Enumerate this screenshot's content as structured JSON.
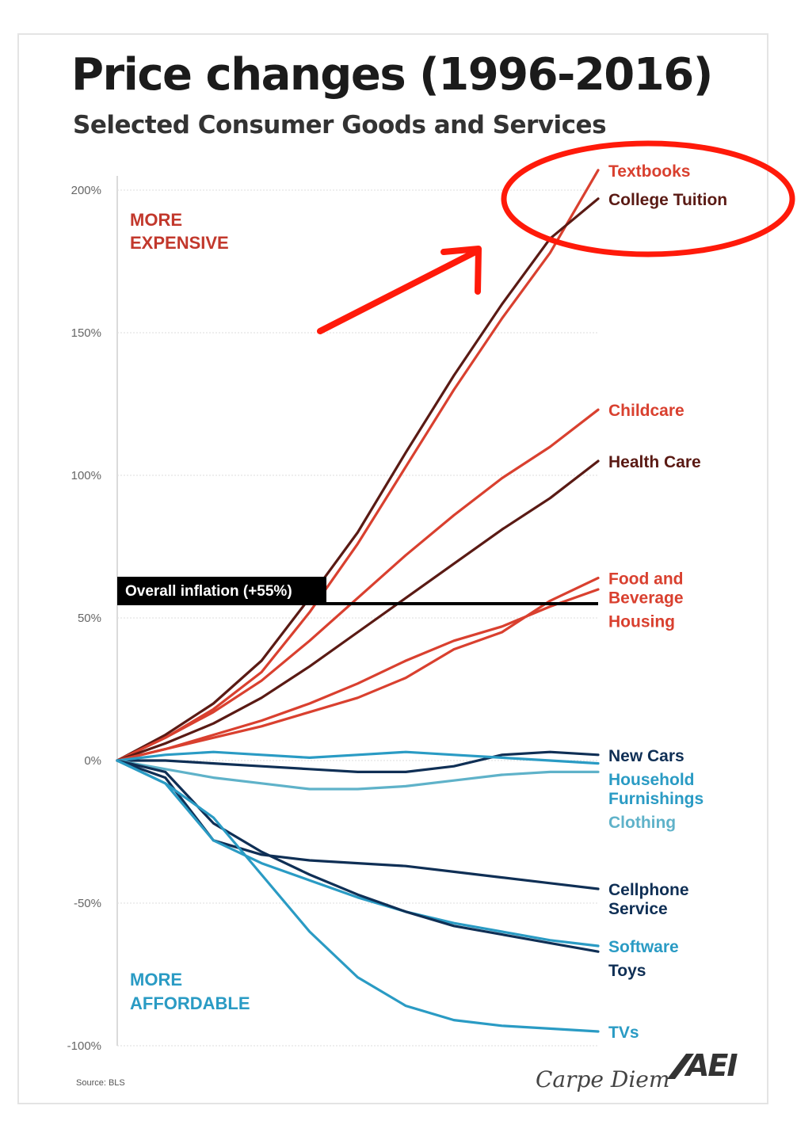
{
  "header": {
    "title": "Price changes (1996-2016)",
    "subtitle": "Selected Consumer Goods and Services"
  },
  "annotations": {
    "more_expensive": [
      "MORE",
      "EXPENSIVE"
    ],
    "more_affordable": [
      "MORE",
      "AFFORDABLE"
    ],
    "inflation_label": "Overall inflation (+55%)"
  },
  "footer": {
    "source": "Source: BLS",
    "brand": "Carpe Diem",
    "logo_text": "AEI"
  },
  "colors": {
    "dark_red": "#5a1a14",
    "red": "#d9402f",
    "navy": "#0f2f55",
    "teal": "#2a9bc4",
    "light_teal": "#5fb2c9",
    "inflation": "#000000",
    "highlight": "#ff1a0a"
  },
  "chart_data": {
    "type": "line",
    "x": [
      1996,
      1998,
      2000,
      2002,
      2004,
      2006,
      2008,
      2010,
      2012,
      2014,
      2016
    ],
    "ylim": [
      -100,
      205
    ],
    "yticks": [
      200,
      150,
      100,
      50,
      0,
      -50,
      -100
    ],
    "ytick_labels": [
      "200%",
      "150%",
      "100%",
      "50%",
      "0%",
      "-50%",
      "-100%"
    ],
    "xlabel": "",
    "ylabel": "",
    "grid": true,
    "reference_line": {
      "label": "Overall inflation (+55%)",
      "value": 55
    },
    "series": [
      {
        "name": "Textbooks",
        "label_lines": [
          "Textbooks"
        ],
        "color": "#d9402f",
        "values": [
          0,
          8,
          18,
          31,
          52,
          76,
          103,
          130,
          155,
          178,
          207
        ]
      },
      {
        "name": "College Tuition",
        "label_lines": [
          "College Tuition"
        ],
        "color": "#5a1a14",
        "values": [
          0,
          9,
          20,
          35,
          57,
          80,
          108,
          135,
          160,
          183,
          197
        ]
      },
      {
        "name": "Childcare",
        "label_lines": [
          "Childcare"
        ],
        "color": "#d9402f",
        "values": [
          0,
          8,
          17,
          28,
          42,
          57,
          72,
          86,
          99,
          110,
          123
        ]
      },
      {
        "name": "Health Care",
        "label_lines": [
          "Health Care"
        ],
        "color": "#5a1a14",
        "values": [
          0,
          6,
          13,
          22,
          33,
          45,
          57,
          69,
          81,
          92,
          105
        ]
      },
      {
        "name": "Food and Beverage",
        "label_lines": [
          "Food and",
          "Beverage"
        ],
        "color": "#d9402f",
        "values": [
          0,
          4,
          8,
          12,
          17,
          22,
          29,
          39,
          45,
          56,
          64
        ]
      },
      {
        "name": "Housing",
        "label_lines": [
          "Housing"
        ],
        "color": "#d9402f",
        "values": [
          0,
          4,
          9,
          14,
          20,
          27,
          35,
          42,
          47,
          54,
          60
        ]
      },
      {
        "name": "New Cars",
        "label_lines": [
          "New Cars"
        ],
        "color": "#0f2f55",
        "values": [
          0,
          0,
          -1,
          -2,
          -3,
          -4,
          -4,
          -2,
          2,
          3,
          2
        ]
      },
      {
        "name": "Household Furnishings",
        "label_lines": [
          "Household",
          "Furnishings"
        ],
        "color": "#2a9bc4",
        "values": [
          0,
          2,
          3,
          2,
          1,
          2,
          3,
          2,
          1,
          0,
          -1
        ]
      },
      {
        "name": "Clothing",
        "label_lines": [
          "Clothing"
        ],
        "color": "#5fb2c9",
        "values": [
          0,
          -3,
          -6,
          -8,
          -10,
          -10,
          -9,
          -7,
          -5,
          -4,
          -4
        ]
      },
      {
        "name": "Cellphone Service",
        "label_lines": [
          "Cellphone",
          "Service"
        ],
        "color": "#0f2f55",
        "values": [
          0,
          -6,
          -28,
          -33,
          -35,
          -36,
          -37,
          -39,
          -41,
          -43,
          -45
        ]
      },
      {
        "name": "Software",
        "label_lines": [
          "Software"
        ],
        "color": "#2a9bc4",
        "values": [
          0,
          -8,
          -28,
          -36,
          -42,
          -48,
          -53,
          -57,
          -60,
          -63,
          -65
        ]
      },
      {
        "name": "Toys",
        "label_lines": [
          "Toys"
        ],
        "color": "#0f2f55",
        "values": [
          0,
          -4,
          -22,
          -32,
          -40,
          -47,
          -53,
          -58,
          -61,
          -64,
          -67
        ]
      },
      {
        "name": "TVs",
        "label_lines": [
          "TVs"
        ],
        "color": "#2a9bc4",
        "values": [
          0,
          -8,
          -20,
          -40,
          -60,
          -76,
          -86,
          -91,
          -93,
          -94,
          -95
        ]
      }
    ]
  }
}
